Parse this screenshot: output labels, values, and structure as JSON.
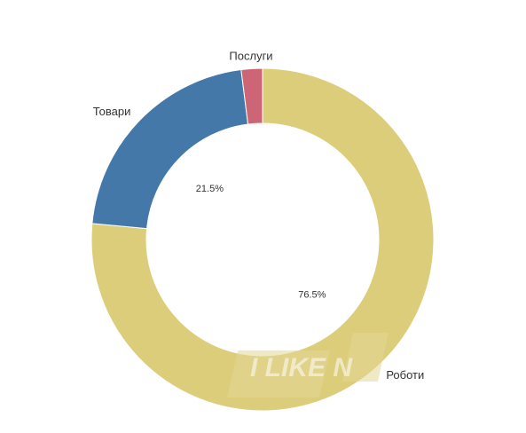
{
  "chart_data": {
    "type": "pie",
    "variant": "donut",
    "title": "",
    "categories": [
      "Роботи",
      "Товари",
      "Послуги"
    ],
    "values": [
      76.5,
      21.5,
      2.0
    ],
    "data_labels": [
      "76.5%",
      "21.5%",
      ""
    ],
    "colors": [
      "#dccd7b",
      "#4378a8",
      "#cc6677"
    ],
    "legend": "none"
  },
  "watermark": {
    "text": "I LIKE N"
  }
}
